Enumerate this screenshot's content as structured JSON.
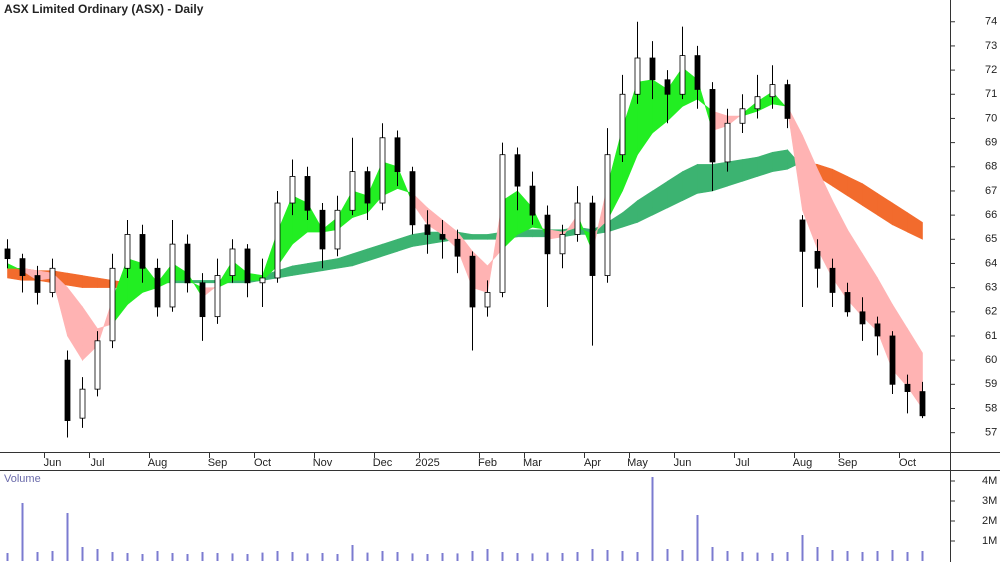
{
  "chart_data": {
    "type": "candlestick",
    "title": "ASX Limited Ordinary (ASX) - Daily",
    "categories": [
      null,
      null,
      null,
      "Jun",
      null,
      null,
      "Jul",
      null,
      null,
      null,
      "Aug",
      null,
      null,
      null,
      "Sep",
      null,
      null,
      "Oct",
      null,
      null,
      null,
      "Nov",
      null,
      null,
      null,
      "Dec",
      null,
      null,
      "2025",
      null,
      null,
      null,
      "Feb",
      null,
      null,
      "Mar",
      null,
      null,
      null,
      "Apr",
      null,
      null,
      "May",
      null,
      null,
      "Jun",
      null,
      null,
      null,
      "Jul",
      null,
      null,
      null,
      "Aug",
      null,
      null,
      "Sep",
      null,
      null,
      null,
      "Oct",
      null
    ],
    "open": [
      64.6,
      64.2,
      63.5,
      62.8,
      60.0,
      57.6,
      58.8,
      60.8,
      63.8,
      65.2,
      63.8,
      62.2,
      64.8,
      63.2,
      61.8,
      63.5,
      64.6,
      63.2,
      63.4,
      66.5,
      67.6,
      66.2,
      64.6,
      66.2,
      67.8,
      66.5,
      69.2,
      67.8,
      65.6,
      65.2,
      65.0,
      64.3,
      62.2,
      62.8,
      68.5,
      67.2,
      66.0,
      64.4,
      65.2,
      66.5,
      63.5,
      68.5,
      71.0,
      72.5,
      71.6,
      71.0,
      72.6,
      71.2,
      68.2,
      69.8,
      70.4,
      70.9,
      71.4,
      65.8,
      64.5,
      63.8,
      62.8,
      62.0,
      61.5,
      61.0,
      59.0,
      58.7
    ],
    "high": [
      65.0,
      64.4,
      63.9,
      64.2,
      60.4,
      59.3,
      61.2,
      64.4,
      65.8,
      65.6,
      64.2,
      65.8,
      65.2,
      63.6,
      64.2,
      65.0,
      64.8,
      64.2,
      67.0,
      68.3,
      68.0,
      66.5,
      66.8,
      69.2,
      68.0,
      69.8,
      69.5,
      68.0,
      66.2,
      65.8,
      65.4,
      64.5,
      63.3,
      69.0,
      68.8,
      67.8,
      66.4,
      65.6,
      67.2,
      66.8,
      69.6,
      71.8,
      74.0,
      73.2,
      72.0,
      73.8,
      73.0,
      71.5,
      70.4,
      71.0,
      71.8,
      72.2,
      71.6,
      66.0,
      65.0,
      64.2,
      63.2,
      62.6,
      61.8,
      61.2,
      59.4,
      59.1
    ],
    "low": [
      63.8,
      62.8,
      62.3,
      62.6,
      56.8,
      57.2,
      58.5,
      60.5,
      63.4,
      63.2,
      61.8,
      62.0,
      62.8,
      60.8,
      61.5,
      63.2,
      62.6,
      62.2,
      63.2,
      66.0,
      65.8,
      63.8,
      64.3,
      66.0,
      65.8,
      66.2,
      67.2,
      65.2,
      64.4,
      64.2,
      63.6,
      60.4,
      61.8,
      62.6,
      66.2,
      65.6,
      62.2,
      63.8,
      64.9,
      60.6,
      63.2,
      68.2,
      70.6,
      70.8,
      69.8,
      70.8,
      70.4,
      67.0,
      67.8,
      69.4,
      70.0,
      70.4,
      69.6,
      62.2,
      63.0,
      62.2,
      61.8,
      60.8,
      60.2,
      58.6,
      57.8,
      57.6
    ],
    "close": [
      64.2,
      63.5,
      62.8,
      63.8,
      57.5,
      58.8,
      60.8,
      63.8,
      65.2,
      63.8,
      62.2,
      64.8,
      63.2,
      61.8,
      63.5,
      64.6,
      63.2,
      63.4,
      66.5,
      67.6,
      66.2,
      64.6,
      66.2,
      67.8,
      66.5,
      69.2,
      67.8,
      65.6,
      65.2,
      65.0,
      64.3,
      62.2,
      62.8,
      68.5,
      67.2,
      66.0,
      64.4,
      65.2,
      66.5,
      63.5,
      68.5,
      71.0,
      72.5,
      71.6,
      71.0,
      72.6,
      71.2,
      68.2,
      69.8,
      70.4,
      70.9,
      71.4,
      70.0,
      64.5,
      63.8,
      62.8,
      62.0,
      61.5,
      61.0,
      59.0,
      58.7,
      57.7
    ],
    "up_color": "#ffffff",
    "down_color": "#000000",
    "ylim": [
      56.2,
      74.9
    ],
    "yticks": [
      57,
      58,
      59,
      60,
      61,
      62,
      63,
      64,
      65,
      66,
      67,
      68,
      69,
      70,
      71,
      72,
      73,
      74
    ],
    "bands": [
      {
        "fast": [
          63.4,
          63.3,
          63.3,
          63.2,
          63.1,
          63.0,
          63.0,
          63.0,
          63.0,
          63.1,
          63.2,
          63.3,
          63.3,
          63.3,
          63.3,
          63.4,
          63.4,
          63.5,
          63.7,
          63.9,
          64.0,
          64.1,
          64.2,
          64.4,
          64.6,
          64.8,
          65.0,
          65.2,
          65.3,
          65.3,
          65.3,
          65.2,
          65.2,
          65.3,
          65.4,
          65.4,
          65.4,
          65.4,
          65.5,
          65.4,
          65.7,
          66.1,
          66.6,
          67.0,
          67.4,
          67.8,
          68.1,
          68.1,
          68.2,
          68.3,
          68.4,
          68.6,
          68.7,
          68.0,
          67.6,
          67.2,
          66.8,
          66.4,
          66.0,
          65.6,
          65.3,
          65.0
        ],
        "slow": [
          63.8,
          63.8,
          63.7,
          63.7,
          63.6,
          63.5,
          63.4,
          63.3,
          63.2,
          63.2,
          63.2,
          63.2,
          63.2,
          63.2,
          63.2,
          63.2,
          63.2,
          63.3,
          63.4,
          63.5,
          63.6,
          63.7,
          63.8,
          63.9,
          64.1,
          64.3,
          64.5,
          64.7,
          64.8,
          64.9,
          65.0,
          65.0,
          65.0,
          65.0,
          65.1,
          65.1,
          65.1,
          65.1,
          65.2,
          65.2,
          65.3,
          65.5,
          65.7,
          66.0,
          66.3,
          66.6,
          66.9,
          67.0,
          67.2,
          67.4,
          67.6,
          67.8,
          67.9,
          68.2,
          68.1,
          67.9,
          67.6,
          67.3,
          66.9,
          66.5,
          66.1,
          65.7
        ],
        "up_color": "#3cb371",
        "down_color": "#f26b2d"
      },
      {
        "fast": [
          64.0,
          63.7,
          63.3,
          63.4,
          61.0,
          60.0,
          60.6,
          62.5,
          64.2,
          64.0,
          63.2,
          64.0,
          63.6,
          62.6,
          63.1,
          64.1,
          63.6,
          63.5,
          65.3,
          66.8,
          66.5,
          65.4,
          65.9,
          67.0,
          66.8,
          68.2,
          68.0,
          66.5,
          65.6,
          65.2,
          64.6,
          63.0,
          62.8,
          66.6,
          67.0,
          66.3,
          65.0,
          65.1,
          66.0,
          64.5,
          67.2,
          69.6,
          71.5,
          71.6,
          71.2,
          72.1,
          71.6,
          69.5,
          69.7,
          70.2,
          70.7,
          71.1,
          70.4,
          66.2,
          64.6,
          63.4,
          62.5,
          61.8,
          61.2,
          59.6,
          58.9,
          58.0
        ],
        "slow": [
          63.8,
          63.8,
          63.7,
          63.6,
          63.0,
          62.2,
          61.3,
          61.5,
          62.3,
          62.8,
          63.0,
          63.3,
          63.3,
          63.0,
          63.0,
          63.3,
          63.3,
          63.3,
          63.9,
          64.8,
          65.3,
          65.3,
          65.4,
          65.9,
          66.1,
          66.8,
          67.1,
          66.9,
          66.3,
          65.8,
          65.3,
          64.5,
          63.9,
          64.6,
          65.2,
          65.5,
          65.4,
          65.3,
          65.5,
          65.2,
          65.8,
          67.0,
          68.5,
          69.4,
          69.9,
          70.5,
          70.8,
          70.3,
          70.1,
          70.1,
          70.3,
          70.6,
          70.5,
          69.3,
          67.9,
          66.6,
          65.4,
          64.4,
          63.4,
          62.3,
          61.3,
          60.3
        ],
        "up_color": "#22ee22",
        "down_color": "#ffb3b3"
      }
    ],
    "volume": {
      "title": "Volume",
      "color": "#7b7bd0",
      "values": [
        400000,
        2900000,
        450000,
        500000,
        2400000,
        700000,
        600000,
        450000,
        400000,
        350000,
        500000,
        400000,
        350000,
        450000,
        400000,
        380000,
        350000,
        420000,
        500000,
        450000,
        380000,
        400000,
        350000,
        800000,
        420000,
        500000,
        450000,
        380000,
        350000,
        400000,
        380000,
        500000,
        600000,
        450000,
        400000,
        380000,
        420000,
        400000,
        450000,
        600000,
        550000,
        500000,
        450000,
        4200000,
        600000,
        550000,
        2300000,
        700000,
        500000,
        450000,
        420000,
        400000,
        450000,
        1300000,
        700000,
        550000,
        500000,
        450000,
        500000,
        550000,
        450000,
        500000
      ],
      "ylim": [
        0,
        4550000
      ],
      "yticks": [
        {
          "value": 1000000,
          "label": "1M"
        },
        {
          "value": 2000000,
          "label": "2M"
        },
        {
          "value": 3000000,
          "label": "3M"
        },
        {
          "value": 4000000,
          "label": "4M"
        }
      ]
    }
  }
}
